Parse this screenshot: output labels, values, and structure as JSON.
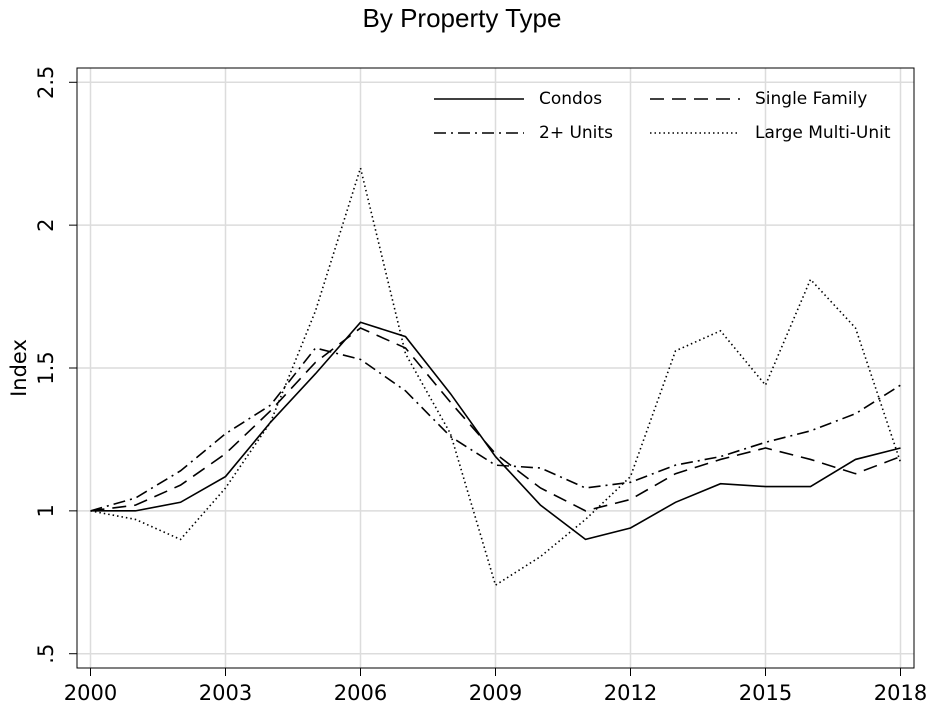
{
  "chart_data": {
    "type": "line",
    "title": "By Property Type",
    "y_label": "Index",
    "x": [
      2000,
      2001,
      2002,
      2003,
      2004,
      2005,
      2006,
      2007,
      2008,
      2009,
      2010,
      2011,
      2012,
      2013,
      2014,
      2015,
      2016,
      2017,
      2018
    ],
    "series": [
      {
        "name": "Condos",
        "color": "#000000",
        "dash": "solid",
        "values": [
          1.0,
          1.0,
          1.03,
          1.12,
          1.31,
          1.48,
          1.66,
          1.61,
          1.41,
          1.19,
          1.02,
          0.9,
          0.94,
          1.03,
          1.095,
          1.085,
          1.085,
          1.18,
          1.22
        ]
      },
      {
        "name": "Single Family",
        "color": "#000000",
        "dash": "dashed",
        "values": [
          1.0,
          1.02,
          1.09,
          1.2,
          1.35,
          1.52,
          1.64,
          1.57,
          1.38,
          1.2,
          1.08,
          1.0,
          1.04,
          1.13,
          1.18,
          1.22,
          1.18,
          1.13,
          1.19
        ]
      },
      {
        "name": "2+ Units",
        "color": "#000000",
        "dash": "dashdot",
        "values": [
          1.0,
          1.045,
          1.14,
          1.27,
          1.37,
          1.57,
          1.53,
          1.42,
          1.26,
          1.16,
          1.15,
          1.08,
          1.1,
          1.16,
          1.19,
          1.24,
          1.28,
          1.34,
          1.44
        ]
      },
      {
        "name": "Large Multi-Unit",
        "color": "#000000",
        "dash": "dotted",
        "values": [
          1.0,
          0.97,
          0.9,
          1.08,
          1.31,
          1.7,
          2.2,
          1.55,
          1.27,
          0.74,
          0.84,
          0.97,
          1.12,
          1.56,
          1.63,
          1.44,
          1.81,
          1.64,
          1.17
        ]
      }
    ],
    "xlim": [
      1999.7,
      2018.3
    ],
    "xticks": [
      2000,
      2003,
      2006,
      2009,
      2012,
      2015,
      2018
    ],
    "ylim": [
      0.45,
      2.55
    ],
    "yticks": [
      {
        "value": 0.5,
        "label": ".5"
      },
      1,
      1.5,
      2,
      2.5
    ],
    "grid": true,
    "legend": "top-right"
  }
}
